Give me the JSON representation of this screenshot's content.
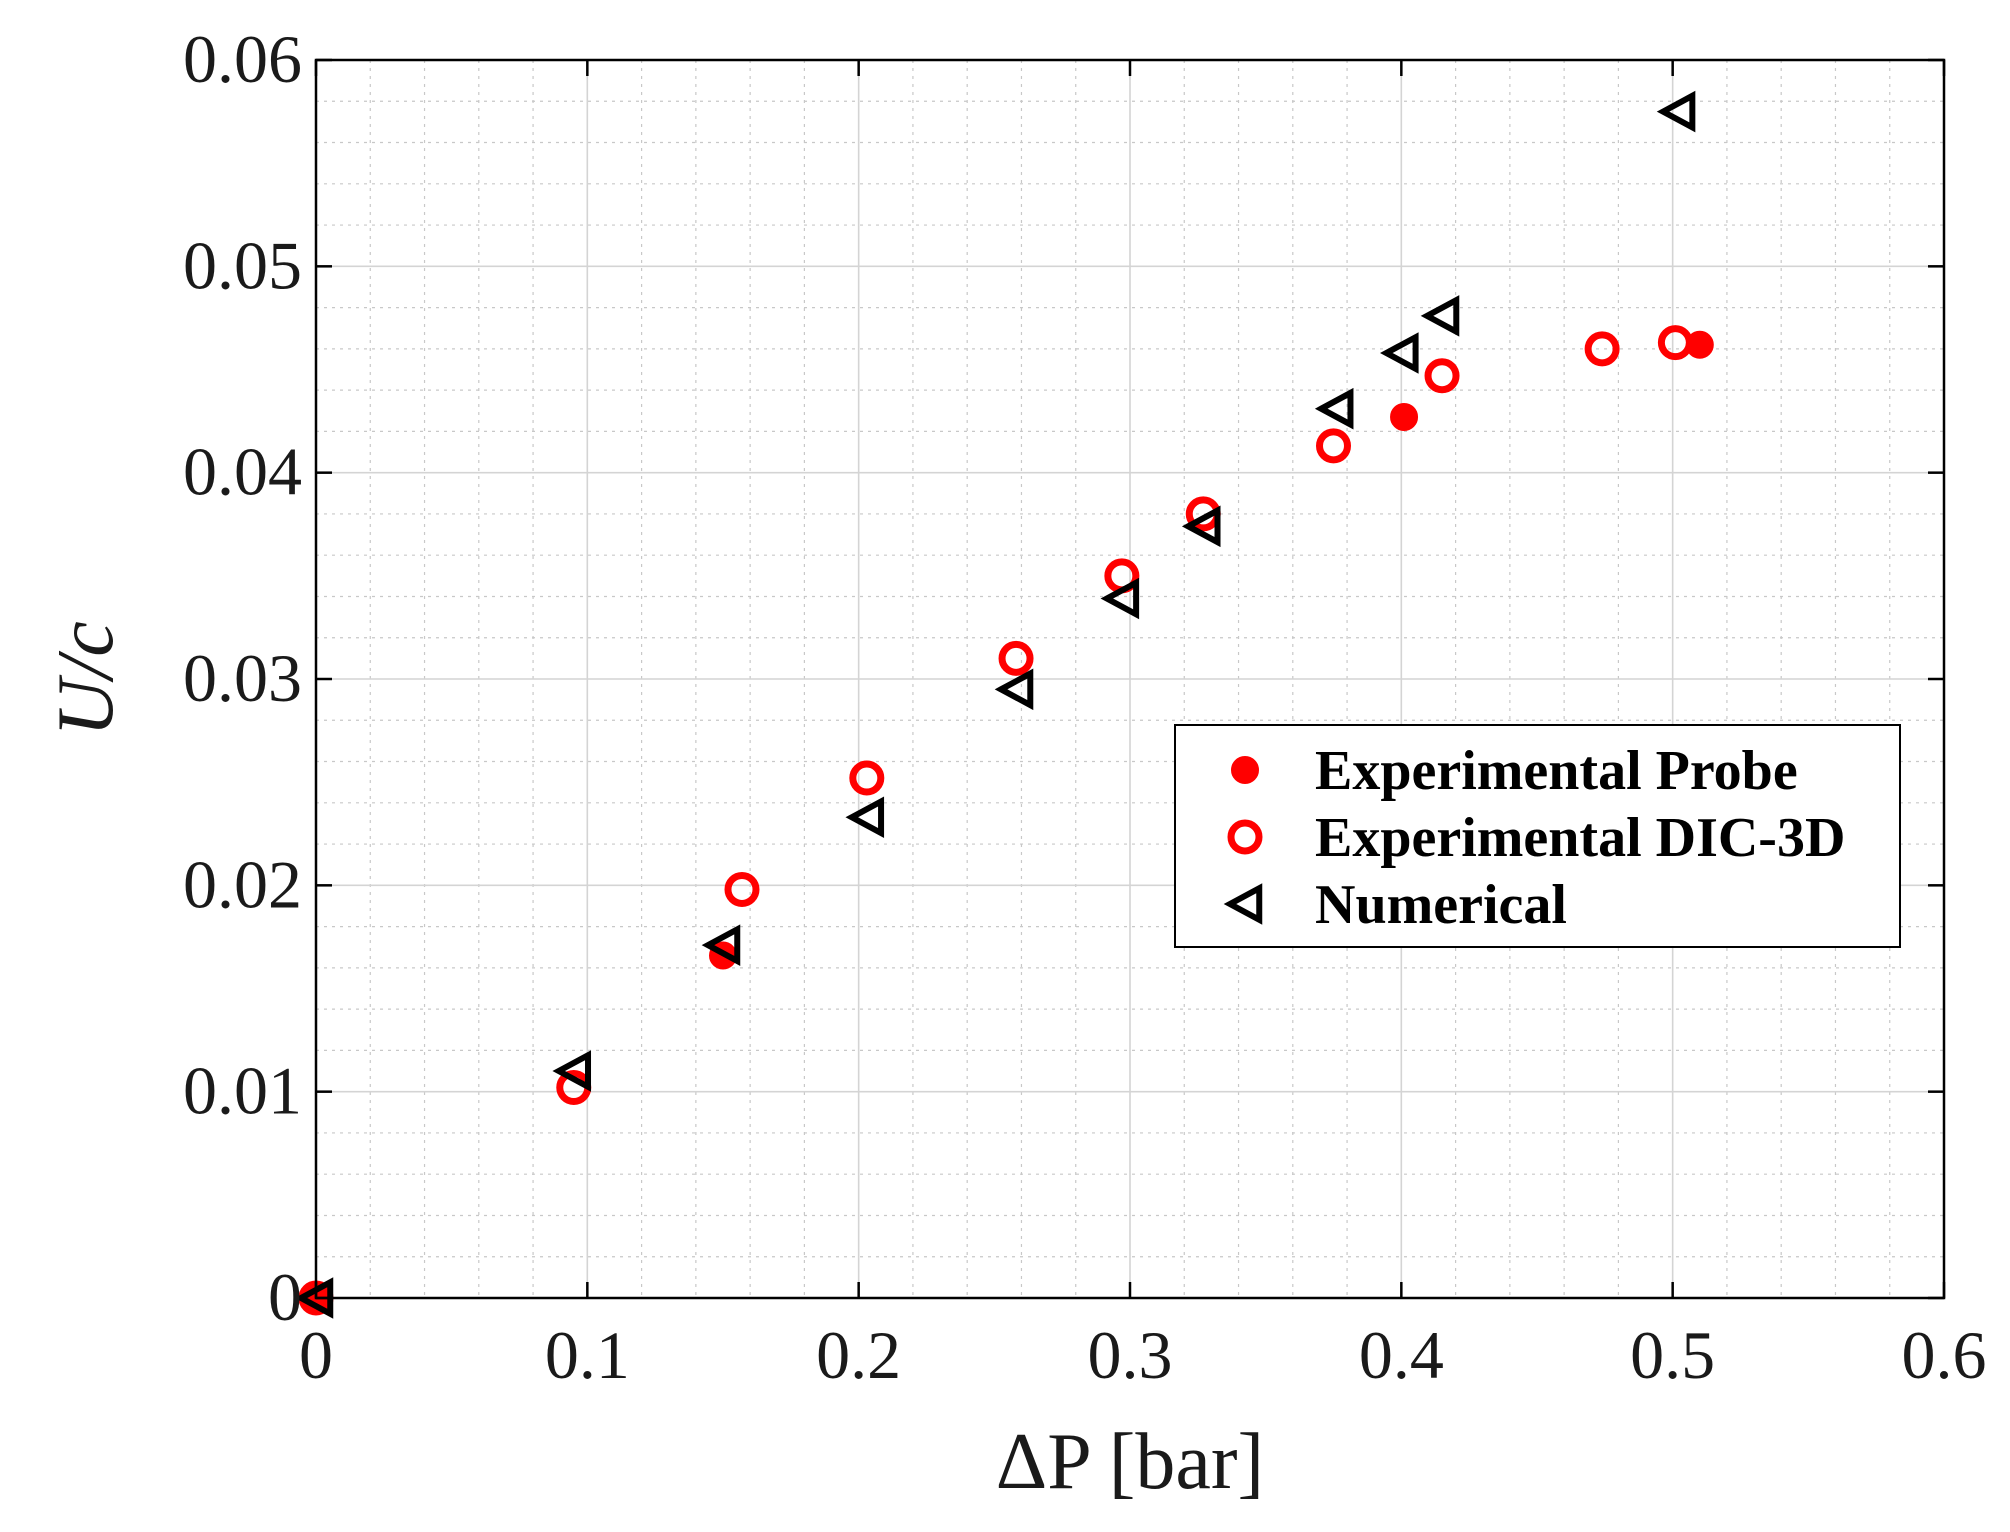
{
  "chart_data": {
    "type": "scatter",
    "title": "",
    "xlabel": "ΔP [bar]",
    "ylabel": "U/c",
    "xlim": [
      0,
      0.6
    ],
    "ylim": [
      0,
      0.06
    ],
    "x_ticks": [
      0,
      0.1,
      0.2,
      0.3,
      0.4,
      0.5,
      0.6
    ],
    "x_tick_labels": [
      "0",
      "0.1",
      "0.2",
      "0.3",
      "0.4",
      "0.5",
      "0.6"
    ],
    "y_ticks": [
      0,
      0.01,
      0.02,
      0.03,
      0.04,
      0.05,
      0.06
    ],
    "y_tick_labels": [
      "0",
      "0.01",
      "0.02",
      "0.03",
      "0.04",
      "0.05",
      "0.06"
    ],
    "grid": "major and minor",
    "legend_position": "center-right",
    "series": [
      {
        "name": "Experimental Probe",
        "marker": "filled-circle",
        "color": "#ff0000",
        "x": [
          0,
          0.15,
          0.401,
          0.51
        ],
        "y": [
          0,
          0.0166,
          0.0427,
          0.0462
        ]
      },
      {
        "name": "Experimental DIC-3D",
        "marker": "open-circle",
        "color": "#ff0000",
        "x": [
          0,
          0.095,
          0.157,
          0.203,
          0.258,
          0.297,
          0.327,
          0.375,
          0.415,
          0.474,
          0.501
        ],
        "y": [
          0,
          0.0102,
          0.0198,
          0.0252,
          0.031,
          0.035,
          0.038,
          0.0413,
          0.0447,
          0.046,
          0.0463
        ]
      },
      {
        "name": "Numerical",
        "marker": "left-triangle",
        "color": "#000000",
        "x": [
          0,
          0.095,
          0.15,
          0.203,
          0.258,
          0.297,
          0.327,
          0.376,
          0.4,
          0.415,
          0.502
        ],
        "y": [
          0,
          0.011,
          0.0171,
          0.0233,
          0.0295,
          0.0339,
          0.0374,
          0.0431,
          0.0458,
          0.0476,
          0.0575
        ]
      }
    ]
  }
}
